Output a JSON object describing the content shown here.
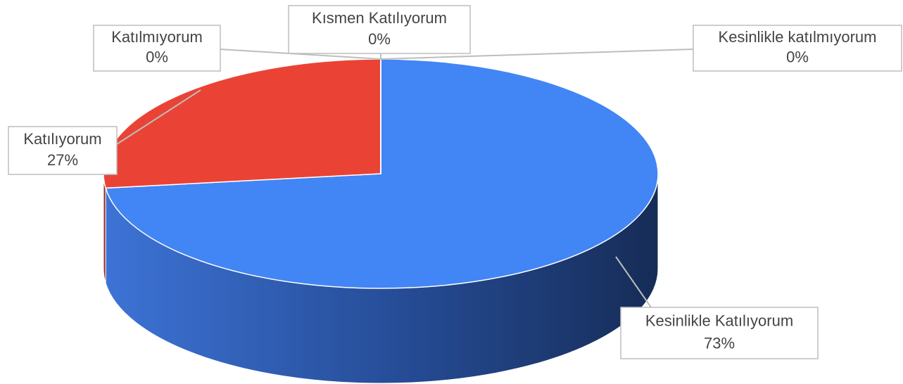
{
  "chart_data": {
    "type": "pie",
    "categories": [
      "Kesinlikle Katılıyorum",
      "Katılıyorum",
      "Kısmen Katılıyorum",
      "Katılmıyorum",
      "Kesinlikle katılmıyorum"
    ],
    "values": [
      73,
      27,
      0,
      0,
      0
    ],
    "value_labels": [
      "73%",
      "27%",
      "0%",
      "0%",
      "0%"
    ],
    "colors": [
      "#4285f4",
      "#ea4335",
      "#fbbc04",
      "#34a853",
      "#ff6d01"
    ]
  }
}
